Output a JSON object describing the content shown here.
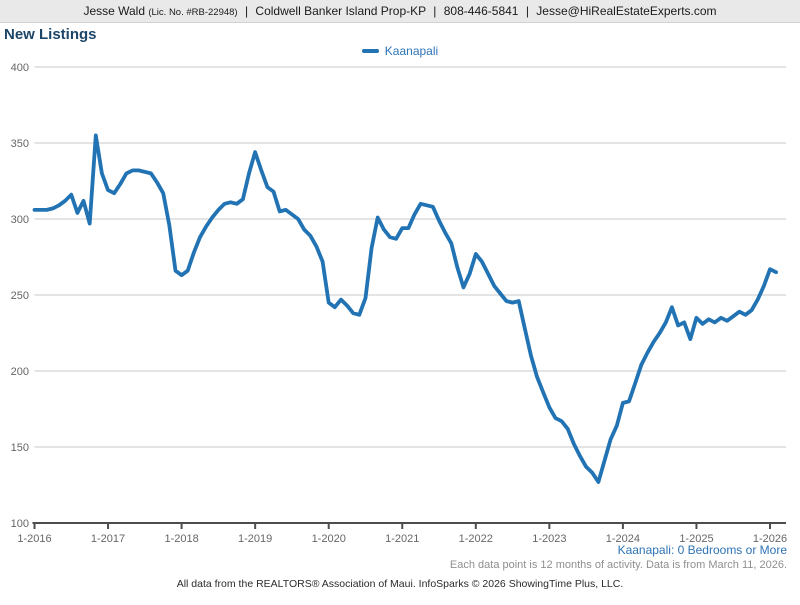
{
  "header": {
    "agent_name": "Jesse Wald",
    "license": "(Lic. No. #RB-22948)",
    "brokerage": "Coldwell Banker Island Prop-KP",
    "phone": "808-446-5841",
    "email": "Jesse@HiRealEstateExperts.com",
    "sep": "|"
  },
  "title": "New Listings",
  "legend": {
    "label": "Kaanapali"
  },
  "footnotes": {
    "series_filter": "Kaanapali: 0 Bedrooms or More",
    "data_note": "Each data point is 12 months of activity. Data is from March 11, 2026.",
    "attribution": "All data from the REALTORS® Association of Maui. InfoSparks © 2026 ShowingTime Plus, LLC."
  },
  "colors": {
    "line_blue": "#2173b4",
    "legend_blue": "#2e74b6",
    "title_navy": "#1c4668",
    "gridline": "#c8c8c8",
    "axis": "#4d4d4d",
    "tick_label": "#666666"
  },
  "chart_data": {
    "type": "line",
    "title": "New Listings",
    "grid": "horizontal",
    "legend_position": "top-center",
    "ylim": [
      100,
      400
    ],
    "y_ticks": [
      100,
      150,
      200,
      250,
      300,
      350,
      400
    ],
    "x_tick_labels": [
      "1-2016",
      "1-2017",
      "1-2018",
      "1-2019",
      "1-2020",
      "1-2021",
      "1-2022",
      "1-2023",
      "1-2024",
      "1-2025",
      "1-2026"
    ],
    "x_interval": "monthly",
    "x_start": "Jan 2016",
    "x_end": "Feb 2026",
    "series": [
      {
        "name": "Kaanapali",
        "color": "#2173b4",
        "values": [
          306,
          306,
          306,
          307,
          309,
          312,
          316,
          304,
          312,
          297,
          355,
          330,
          319,
          317,
          323,
          330,
          332,
          332,
          331,
          330,
          324,
          317,
          296,
          266,
          263,
          266,
          278,
          288,
          295,
          301,
          306,
          310,
          311,
          310,
          313,
          330,
          344,
          332,
          321,
          318,
          305,
          306,
          303,
          300,
          293,
          289,
          282,
          272,
          245,
          242,
          247,
          243,
          238,
          237,
          248,
          281,
          301,
          293,
          288,
          287,
          294,
          294,
          303,
          310,
          309,
          308,
          299,
          291,
          284,
          268,
          255,
          264,
          277,
          272,
          264,
          256,
          251,
          246,
          245,
          246,
          228,
          210,
          196,
          186,
          176,
          169,
          167,
          162,
          152,
          144,
          137,
          133,
          127,
          141,
          155,
          164,
          179,
          180,
          192,
          204,
          212,
          219,
          225,
          232,
          242,
          230,
          232,
          221,
          235,
          231,
          234,
          232,
          235,
          233,
          236,
          239,
          237,
          240,
          247,
          256,
          267,
          265
        ]
      }
    ]
  }
}
